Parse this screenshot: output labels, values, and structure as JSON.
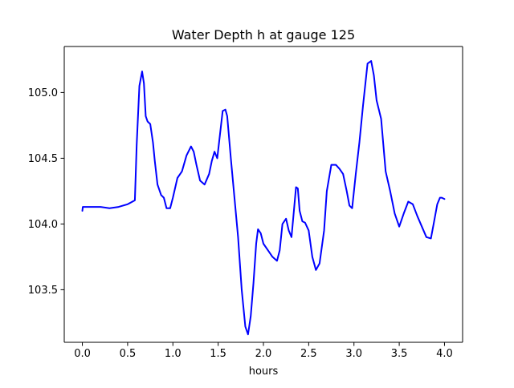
{
  "chart_data": {
    "type": "line",
    "title": "Water Depth h at gauge 125",
    "xlabel": "hours",
    "ylabel": "",
    "xlim": [
      -0.2,
      4.2
    ],
    "ylim": [
      103.1,
      105.35
    ],
    "x_ticks": [
      0.0,
      0.5,
      1.0,
      1.5,
      2.0,
      2.5,
      3.0,
      3.5,
      4.0
    ],
    "x_tick_labels": [
      "0.0",
      "0.5",
      "1.0",
      "1.5",
      "2.0",
      "2.5",
      "3.0",
      "3.5",
      "4.0"
    ],
    "y_ticks": [
      103.5,
      104.0,
      104.5,
      105.0
    ],
    "y_tick_labels": [
      "103.5",
      "104.0",
      "104.5",
      "105.0"
    ],
    "grid": false,
    "colors": {
      "line": "#0000ff",
      "axes": "#000000",
      "background": "#ffffff"
    },
    "series": [
      {
        "x": [
          0.0,
          0.005,
          0.1,
          0.2,
          0.3,
          0.4,
          0.5,
          0.58,
          0.6,
          0.63,
          0.66,
          0.68,
          0.7,
          0.72,
          0.75,
          0.78,
          0.8,
          0.83,
          0.87,
          0.9,
          0.93,
          0.97,
          1.0,
          1.05,
          1.1,
          1.15,
          1.2,
          1.23,
          1.26,
          1.3,
          1.35,
          1.4,
          1.43,
          1.46,
          1.49,
          1.52,
          1.55,
          1.58,
          1.6,
          1.64,
          1.68,
          1.72,
          1.76,
          1.8,
          1.83,
          1.86,
          1.89,
          1.92,
          1.94,
          1.97,
          2.0,
          2.05,
          2.1,
          2.15,
          2.18,
          2.21,
          2.25,
          2.28,
          2.31,
          2.33,
          2.36,
          2.38,
          2.4,
          2.43,
          2.46,
          2.5,
          2.54,
          2.58,
          2.62,
          2.67,
          2.7,
          2.75,
          2.8,
          2.84,
          2.88,
          2.92,
          2.95,
          2.98,
          3.02,
          3.06,
          3.1,
          3.15,
          3.19,
          3.22,
          3.25,
          3.3,
          3.35,
          3.4,
          3.45,
          3.5,
          3.55,
          3.6,
          3.65,
          3.7,
          3.75,
          3.8,
          3.85,
          3.88,
          3.92,
          3.95,
          3.97,
          4.0
        ],
        "y": [
          104.1,
          104.13,
          104.13,
          104.13,
          104.12,
          104.13,
          104.15,
          104.18,
          104.6,
          105.05,
          105.16,
          105.07,
          104.82,
          104.78,
          104.76,
          104.62,
          104.48,
          104.3,
          104.22,
          104.2,
          104.12,
          104.12,
          104.2,
          104.35,
          104.4,
          104.52,
          104.59,
          104.55,
          104.45,
          104.33,
          104.3,
          104.38,
          104.48,
          104.55,
          104.5,
          104.68,
          104.86,
          104.87,
          104.82,
          104.5,
          104.2,
          103.9,
          103.5,
          103.22,
          103.16,
          103.3,
          103.55,
          103.85,
          103.96,
          103.93,
          103.85,
          103.8,
          103.75,
          103.72,
          103.8,
          104.0,
          104.04,
          103.95,
          103.9,
          104.05,
          104.28,
          104.27,
          104.1,
          104.02,
          104.01,
          103.95,
          103.75,
          103.65,
          103.7,
          103.95,
          104.25,
          104.45,
          104.45,
          104.42,
          104.38,
          104.25,
          104.14,
          104.12,
          104.38,
          104.62,
          104.9,
          105.22,
          105.24,
          105.13,
          104.94,
          104.8,
          104.4,
          104.25,
          104.08,
          103.98,
          104.08,
          104.17,
          104.15,
          104.06,
          103.98,
          103.9,
          103.89,
          104.0,
          104.15,
          104.2,
          104.2,
          104.19
        ]
      }
    ]
  }
}
